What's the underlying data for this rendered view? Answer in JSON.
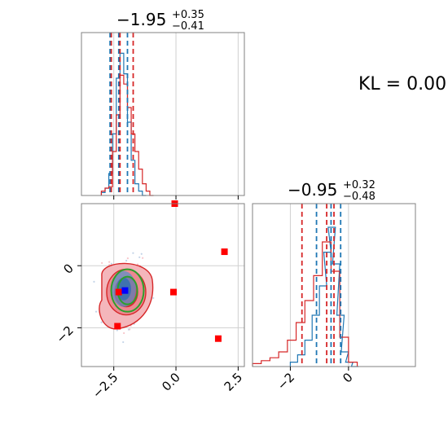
{
  "chart_data": [
    {
      "type": "histogram",
      "panel": "top-left marginal (parameter 1)",
      "title": {
        "main": "−1.95",
        "sup": "+0.35",
        "sub": "−0.41"
      },
      "xlim": [
        -3.8,
        2.75
      ],
      "x_ticks": [
        -2.5,
        0.0,
        2.5
      ],
      "show_tick_labels": false,
      "grid": true,
      "series": [
        {
          "color": "#1f77b4",
          "bins_x": [
            -3.0,
            -2.85,
            -2.7,
            -2.55,
            -2.4,
            -2.25,
            -2.1,
            -1.95,
            -1.8,
            -1.65,
            -1.5,
            -1.35
          ],
          "heights": [
            0.02,
            0.05,
            0.15,
            0.42,
            0.8,
            0.97,
            0.83,
            0.5,
            0.24,
            0.08,
            0.03,
            0.0
          ]
        },
        {
          "color": "#d62728",
          "bins_x": [
            -3.0,
            -2.85,
            -2.7,
            -2.55,
            -2.4,
            -2.25,
            -2.1,
            -1.95,
            -1.8,
            -1.65,
            -1.5,
            -1.35,
            -1.2,
            -1.05
          ],
          "heights": [
            0.03,
            0.05,
            0.06,
            0.3,
            0.55,
            0.82,
            0.76,
            0.6,
            0.42,
            0.3,
            0.18,
            0.08,
            0.03,
            0.0
          ]
        }
      ],
      "quantile_lines": [
        {
          "color": "#1f77b4",
          "x": [
            -2.65,
            -2.3,
            -1.95
          ]
        },
        {
          "color": "#d62728",
          "x": [
            -2.6,
            -2.25,
            -1.72
          ]
        }
      ]
    },
    {
      "type": "histogram",
      "panel": "bottom-right marginal (parameter 2)",
      "title": {
        "main": "−0.95",
        "sup": "+0.32",
        "sub": "−0.48"
      },
      "xlim": [
        -3.3,
        2.3
      ],
      "x_ticks": [
        -2,
        0
      ],
      "x_tick_labels": [
        "−2",
        "0"
      ],
      "grid": true,
      "series": [
        {
          "color": "#1f77b4",
          "bins_x": [
            -2.0,
            -1.75,
            -1.5,
            -1.25,
            -1.0,
            -0.85,
            -0.7,
            -0.55,
            -0.4,
            -0.25,
            -0.1,
            0.1
          ],
          "heights": [
            0.03,
            0.08,
            0.18,
            0.35,
            0.55,
            0.78,
            0.95,
            0.7,
            0.35,
            0.1,
            0.03,
            0.0
          ]
        },
        {
          "color": "#d62728",
          "bins_x": [
            -3.3,
            -3.0,
            -2.7,
            -2.4,
            -2.1,
            -1.8,
            -1.5,
            -1.2,
            -0.9,
            -0.6,
            -0.3,
            0.0
          ],
          "heights": [
            0.02,
            0.04,
            0.06,
            0.1,
            0.18,
            0.3,
            0.45,
            0.62,
            0.85,
            0.65,
            0.2,
            0.03
          ]
        }
      ],
      "quantile_lines": [
        {
          "color": "#1f77b4",
          "x": [
            -1.1,
            -0.6,
            -0.27
          ]
        },
        {
          "color": "#d62728",
          "x": [
            -1.6,
            -0.75,
            -0.5
          ]
        }
      ]
    },
    {
      "type": "scatter",
      "panel": "bottom-left joint (parameter 1 vs parameter 2)",
      "xlim": [
        -3.8,
        2.75
      ],
      "ylim": [
        -3.25,
        2.0
      ],
      "x_ticks": [
        -2.5,
        0.0,
        2.5
      ],
      "x_tick_labels": [
        "−2.5",
        "0.0",
        "2.5"
      ],
      "y_ticks": [
        0,
        -2
      ],
      "y_tick_labels": [
        "0",
        "−2"
      ],
      "grid": true,
      "red_square_markers": [
        {
          "x": -0.05,
          "y": 2.0
        },
        {
          "x": 1.95,
          "y": 0.45
        },
        {
          "x": -0.1,
          "y": -0.85
        },
        {
          "x": -2.35,
          "y": -1.95
        },
        {
          "x": 1.7,
          "y": -2.35
        },
        {
          "x": -2.3,
          "y": -0.85
        }
      ],
      "blue_square_marker": {
        "x": -2.05,
        "y": -0.8
      },
      "contours": {
        "red_filled_center": {
          "x": -2.0,
          "y": -0.85
        },
        "blue_center": {
          "x": -2.1,
          "y": -0.75
        },
        "green_center": {
          "x": -1.95,
          "y": -0.8
        }
      }
    }
  ],
  "annotation": "KL = 0.00"
}
